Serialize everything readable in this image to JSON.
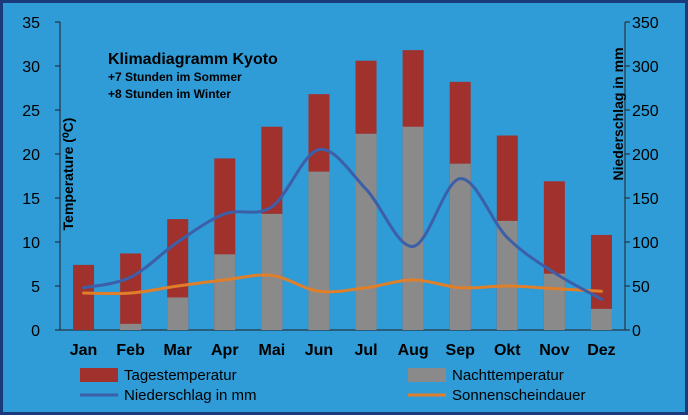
{
  "chart_data": {
    "type": "bar",
    "title": "Klimadiagramm Kyoto",
    "subtitle_lines": [
      "+7 Stunden im Sommer",
      "+8 Stunden im Winter"
    ],
    "xlabel": "",
    "ylabel_left": "Temperature (⁰C)",
    "ylabel_right": "Niederschlag in mm",
    "ylim_left": [
      0,
      35
    ],
    "ylim_right": [
      0,
      350
    ],
    "yticks_left": [
      0,
      5,
      10,
      15,
      20,
      25,
      30,
      35
    ],
    "yticks_right": [
      0,
      50,
      100,
      150,
      200,
      250,
      300,
      350
    ],
    "grid": false,
    "legend_position": "bottom",
    "categories": [
      "Jan",
      "Feb",
      "Mar",
      "Apr",
      "Mai",
      "Jun",
      "Jul",
      "Aug",
      "Sep",
      "Okt",
      "Nov",
      "Dez"
    ],
    "series": [
      {
        "name": "Tagestemperatur",
        "type": "bar",
        "axis": "left",
        "color": "#a0312d",
        "values": [
          7.4,
          8.7,
          12.6,
          19.5,
          23.1,
          26.8,
          30.6,
          31.8,
          28.2,
          22.1,
          16.9,
          10.8
        ]
      },
      {
        "name": "Nachttemperatur",
        "type": "bar",
        "axis": "left",
        "color": "#8a8a8a",
        "values": [
          0.0,
          0.7,
          3.7,
          8.6,
          13.2,
          18.0,
          22.3,
          23.1,
          18.9,
          12.4,
          6.4,
          2.4
        ]
      },
      {
        "name": "Niederschlag in mm",
        "type": "line",
        "axis": "right",
        "color": "#3c5fa8",
        "values": [
          48,
          60,
          100,
          132,
          140,
          205,
          160,
          95,
          172,
          105,
          65,
          35
        ]
      },
      {
        "name": "Sonnenscheindauer",
        "type": "line",
        "axis": "right",
        "color": "#e07f2a",
        "values": [
          42,
          42,
          50,
          57,
          62,
          44,
          48,
          57,
          48,
          50,
          47,
          44
        ]
      }
    ]
  },
  "colors": {
    "frame": "#1a3a7c",
    "plot_background": "#2f9bd7",
    "text": "#000000"
  }
}
